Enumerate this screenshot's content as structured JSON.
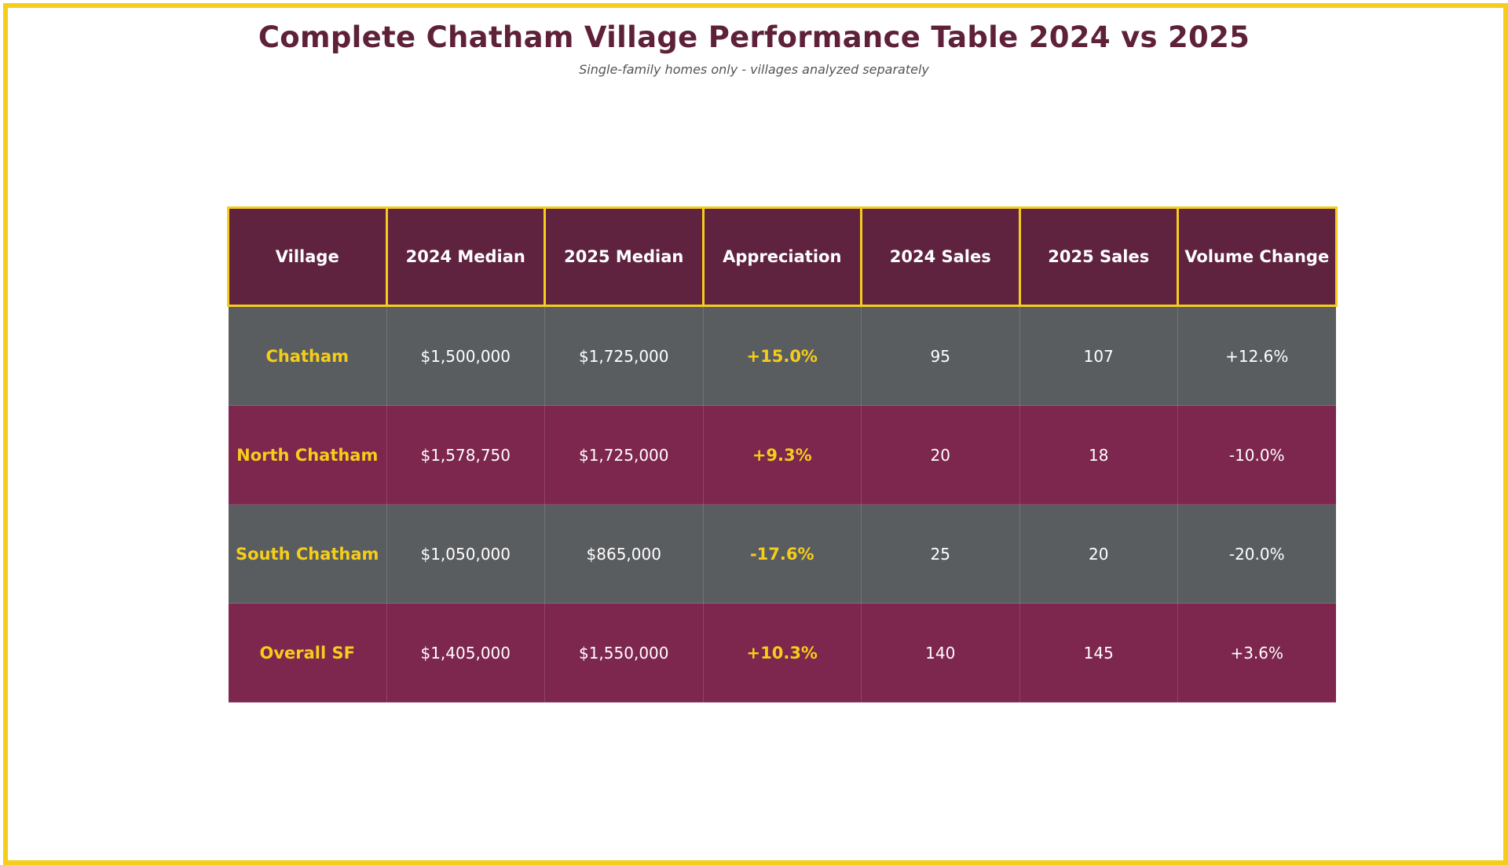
{
  "title": "Complete Chatham Village Performance Table 2024 vs 2025",
  "subtitle": "Single-family homes only - villages analyzed separately",
  "colors": {
    "accent": "#F5CD1B",
    "header_bg": "#5F2340",
    "row_gray": "#5A5D60",
    "row_plum": "#7D264E",
    "title": "#5E2139"
  },
  "chart_data": {
    "type": "table",
    "title": "Complete Chatham Village Performance Table 2024 vs 2025",
    "subtitle": "Single-family homes only - villages analyzed separately",
    "columns": [
      "Village",
      "2024 Median",
      "2025 Median",
      "Appreciation",
      "2024 Sales",
      "2025 Sales",
      "Volume Change"
    ],
    "rows": [
      [
        "Chatham",
        "$1,500,000",
        "$1,725,000",
        "+15.0%",
        "95",
        "107",
        "+12.6%"
      ],
      [
        "North Chatham",
        "$1,578,750",
        "$1,725,000",
        "+9.3%",
        "20",
        "18",
        "-10.0%"
      ],
      [
        "South Chatham",
        "$1,050,000",
        "$865,000",
        "-17.6%",
        "25",
        "20",
        "-20.0%"
      ],
      [
        "Overall SF",
        "$1,405,000",
        "$1,550,000",
        "+10.3%",
        "140",
        "145",
        "+3.6%"
      ]
    ]
  }
}
